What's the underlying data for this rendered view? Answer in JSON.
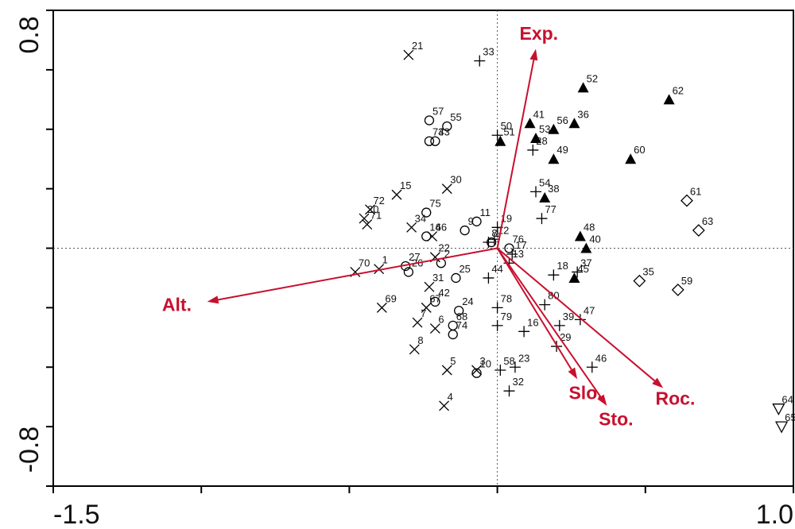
{
  "chart_data": {
    "type": "scatter",
    "title": "",
    "xlabel": "",
    "ylabel": "",
    "xlim": [
      -1.5,
      1.0
    ],
    "ylim": [
      -0.8,
      0.8
    ],
    "x_tick_labels": [
      "-1.5",
      "1.0"
    ],
    "y_tick_labels": [
      "0.8",
      "-0.8"
    ],
    "zero_lines": true,
    "vector_color": "#c8102e",
    "vectors": [
      {
        "label": "Exp.",
        "x": 0.13,
        "y": 0.67
      },
      {
        "label": "Alt.",
        "x": -0.98,
        "y": -0.18
      },
      {
        "label": "Slo.",
        "x": 0.27,
        "y": -0.44
      },
      {
        "label": "Sto.",
        "x": 0.37,
        "y": -0.53
      },
      {
        "label": "Roc.",
        "x": 0.56,
        "y": -0.47
      }
    ],
    "points": [
      {
        "id": "21",
        "marker": "x",
        "x": -0.3,
        "y": 0.65
      },
      {
        "id": "33",
        "marker": "plus",
        "x": -0.06,
        "y": 0.63
      },
      {
        "id": "52",
        "marker": "triangle",
        "x": 0.29,
        "y": 0.54
      },
      {
        "id": "62",
        "marker": "triangle",
        "x": 0.58,
        "y": 0.5
      },
      {
        "id": "57",
        "marker": "circle",
        "x": -0.23,
        "y": 0.43
      },
      {
        "id": "55",
        "marker": "circle",
        "x": -0.17,
        "y": 0.41
      },
      {
        "id": "73",
        "marker": "circle",
        "x": -0.23,
        "y": 0.36
      },
      {
        "id": "43",
        "marker": "circle",
        "x": -0.21,
        "y": 0.36
      },
      {
        "id": "41",
        "marker": "triangle",
        "x": 0.11,
        "y": 0.42
      },
      {
        "id": "56",
        "marker": "triangle",
        "x": 0.19,
        "y": 0.4
      },
      {
        "id": "36",
        "marker": "triangle",
        "x": 0.26,
        "y": 0.42
      },
      {
        "id": "50",
        "marker": "plus",
        "x": 0.0,
        "y": 0.38
      },
      {
        "id": "51",
        "marker": "triangle",
        "x": 0.01,
        "y": 0.36
      },
      {
        "id": "53",
        "marker": "triangle",
        "x": 0.13,
        "y": 0.37
      },
      {
        "id": "28",
        "marker": "plus",
        "x": 0.12,
        "y": 0.33
      },
      {
        "id": "49",
        "marker": "triangle",
        "x": 0.19,
        "y": 0.3
      },
      {
        "id": "60",
        "marker": "triangle",
        "x": 0.45,
        "y": 0.3
      },
      {
        "id": "30",
        "marker": "x",
        "x": -0.17,
        "y": 0.2
      },
      {
        "id": "15",
        "marker": "x",
        "x": -0.34,
        "y": 0.18
      },
      {
        "id": "54",
        "marker": "plus",
        "x": 0.13,
        "y": 0.19
      },
      {
        "id": "38",
        "marker": "triangle",
        "x": 0.16,
        "y": 0.17
      },
      {
        "id": "61",
        "marker": "diamond",
        "x": 0.64,
        "y": 0.16
      },
      {
        "id": "72",
        "marker": "x",
        "x": -0.43,
        "y": 0.13
      },
      {
        "id": "75",
        "marker": "circle",
        "x": -0.24,
        "y": 0.12
      },
      {
        "id": "20",
        "marker": "x",
        "x": -0.45,
        "y": 0.1
      },
      {
        "id": "71",
        "marker": "x",
        "x": -0.44,
        "y": 0.08
      },
      {
        "id": "34",
        "marker": "x",
        "x": -0.29,
        "y": 0.07
      },
      {
        "id": "11",
        "marker": "circle",
        "x": -0.07,
        "y": 0.09
      },
      {
        "id": "9",
        "marker": "circle",
        "x": -0.11,
        "y": 0.06
      },
      {
        "id": "19",
        "marker": "plus",
        "x": 0.0,
        "y": 0.07
      },
      {
        "id": "77",
        "marker": "plus",
        "x": 0.15,
        "y": 0.1
      },
      {
        "id": "63",
        "marker": "diamond",
        "x": 0.68,
        "y": 0.06
      },
      {
        "id": "14",
        "marker": "circle",
        "x": -0.24,
        "y": 0.04
      },
      {
        "id": "66",
        "marker": "x",
        "x": -0.22,
        "y": 0.04
      },
      {
        "id": "48",
        "marker": "triangle",
        "x": 0.28,
        "y": 0.04
      },
      {
        "id": "12",
        "marker": "plus",
        "x": -0.01,
        "y": 0.03
      },
      {
        "id": "8",
        "marker": "plus",
        "x": -0.03,
        "y": 0.02
      },
      {
        "id": "1",
        "marker": "circle",
        "x": -0.02,
        "y": 0.02
      },
      {
        "id": "40",
        "marker": "triangle",
        "x": 0.3,
        "y": 0.0
      },
      {
        "id": "76",
        "marker": "circle",
        "x": 0.04,
        "y": 0.0
      },
      {
        "id": "17",
        "marker": "plus",
        "x": 0.05,
        "y": -0.02
      },
      {
        "id": "22",
        "marker": "x",
        "x": -0.21,
        "y": -0.03
      },
      {
        "id": "2",
        "marker": "circle",
        "x": -0.19,
        "y": -0.05
      },
      {
        "id": "13",
        "marker": "plus",
        "x": 0.04,
        "y": -0.05
      },
      {
        "id": "70",
        "marker": "x",
        "x": -0.48,
        "y": -0.08
      },
      {
        "id": "1",
        "marker": "x",
        "x": -0.4,
        "y": -0.07
      },
      {
        "id": "27",
        "marker": "circle",
        "x": -0.31,
        "y": -0.06
      },
      {
        "id": "26",
        "marker": "circle",
        "x": -0.3,
        "y": -0.08
      },
      {
        "id": "44",
        "marker": "plus",
        "x": -0.03,
        "y": -0.1
      },
      {
        "id": "18",
        "marker": "plus",
        "x": 0.19,
        "y": -0.09
      },
      {
        "id": "37",
        "marker": "plus",
        "x": 0.27,
        "y": -0.08
      },
      {
        "id": "31",
        "marker": "x",
        "x": -0.23,
        "y": -0.13
      },
      {
        "id": "25",
        "marker": "circle",
        "x": -0.14,
        "y": -0.1
      },
      {
        "id": "45",
        "marker": "triangle",
        "x": 0.26,
        "y": -0.1
      },
      {
        "id": "35",
        "marker": "diamond",
        "x": 0.48,
        "y": -0.11
      },
      {
        "id": "59",
        "marker": "diamond",
        "x": 0.61,
        "y": -0.14
      },
      {
        "id": "69",
        "marker": "x",
        "x": -0.39,
        "y": -0.2
      },
      {
        "id": "42",
        "marker": "circle",
        "x": -0.21,
        "y": -0.18
      },
      {
        "id": "67",
        "marker": "x",
        "x": -0.24,
        "y": -0.2
      },
      {
        "id": "78",
        "marker": "plus",
        "x": 0.0,
        "y": -0.2
      },
      {
        "id": "80",
        "marker": "plus",
        "x": 0.16,
        "y": -0.19
      },
      {
        "id": "24",
        "marker": "circle",
        "x": -0.13,
        "y": -0.21
      },
      {
        "id": "47",
        "marker": "plus",
        "x": 0.28,
        "y": -0.24
      },
      {
        "id": "39",
        "marker": "plus",
        "x": 0.21,
        "y": -0.26
      },
      {
        "id": "7",
        "marker": "x",
        "x": -0.27,
        "y": -0.25
      },
      {
        "id": "6",
        "marker": "x",
        "x": -0.21,
        "y": -0.27
      },
      {
        "id": "68",
        "marker": "circle",
        "x": -0.15,
        "y": -0.26
      },
      {
        "id": "74",
        "marker": "circle",
        "x": -0.15,
        "y": -0.29
      },
      {
        "id": "79",
        "marker": "plus",
        "x": 0.0,
        "y": -0.26
      },
      {
        "id": "16",
        "marker": "plus",
        "x": 0.09,
        "y": -0.28
      },
      {
        "id": "29",
        "marker": "plus",
        "x": 0.2,
        "y": -0.33
      },
      {
        "id": "8",
        "marker": "x",
        "x": -0.28,
        "y": -0.34
      },
      {
        "id": "46",
        "marker": "plus",
        "x": 0.32,
        "y": -0.4
      },
      {
        "id": "5",
        "marker": "x",
        "x": -0.17,
        "y": -0.41
      },
      {
        "id": "3",
        "marker": "x",
        "x": -0.07,
        "y": -0.41
      },
      {
        "id": "10",
        "marker": "circle",
        "x": -0.07,
        "y": -0.42
      },
      {
        "id": "58",
        "marker": "plus",
        "x": 0.01,
        "y": -0.41
      },
      {
        "id": "23",
        "marker": "plus",
        "x": 0.06,
        "y": -0.4
      },
      {
        "id": "32",
        "marker": "plus",
        "x": 0.04,
        "y": -0.48
      },
      {
        "id": "4",
        "marker": "x",
        "x": -0.18,
        "y": -0.53
      },
      {
        "id": "64",
        "marker": "triangle-down",
        "x": 0.95,
        "y": -0.54
      },
      {
        "id": "65",
        "marker": "triangle-down",
        "x": 0.96,
        "y": -0.6
      }
    ]
  }
}
